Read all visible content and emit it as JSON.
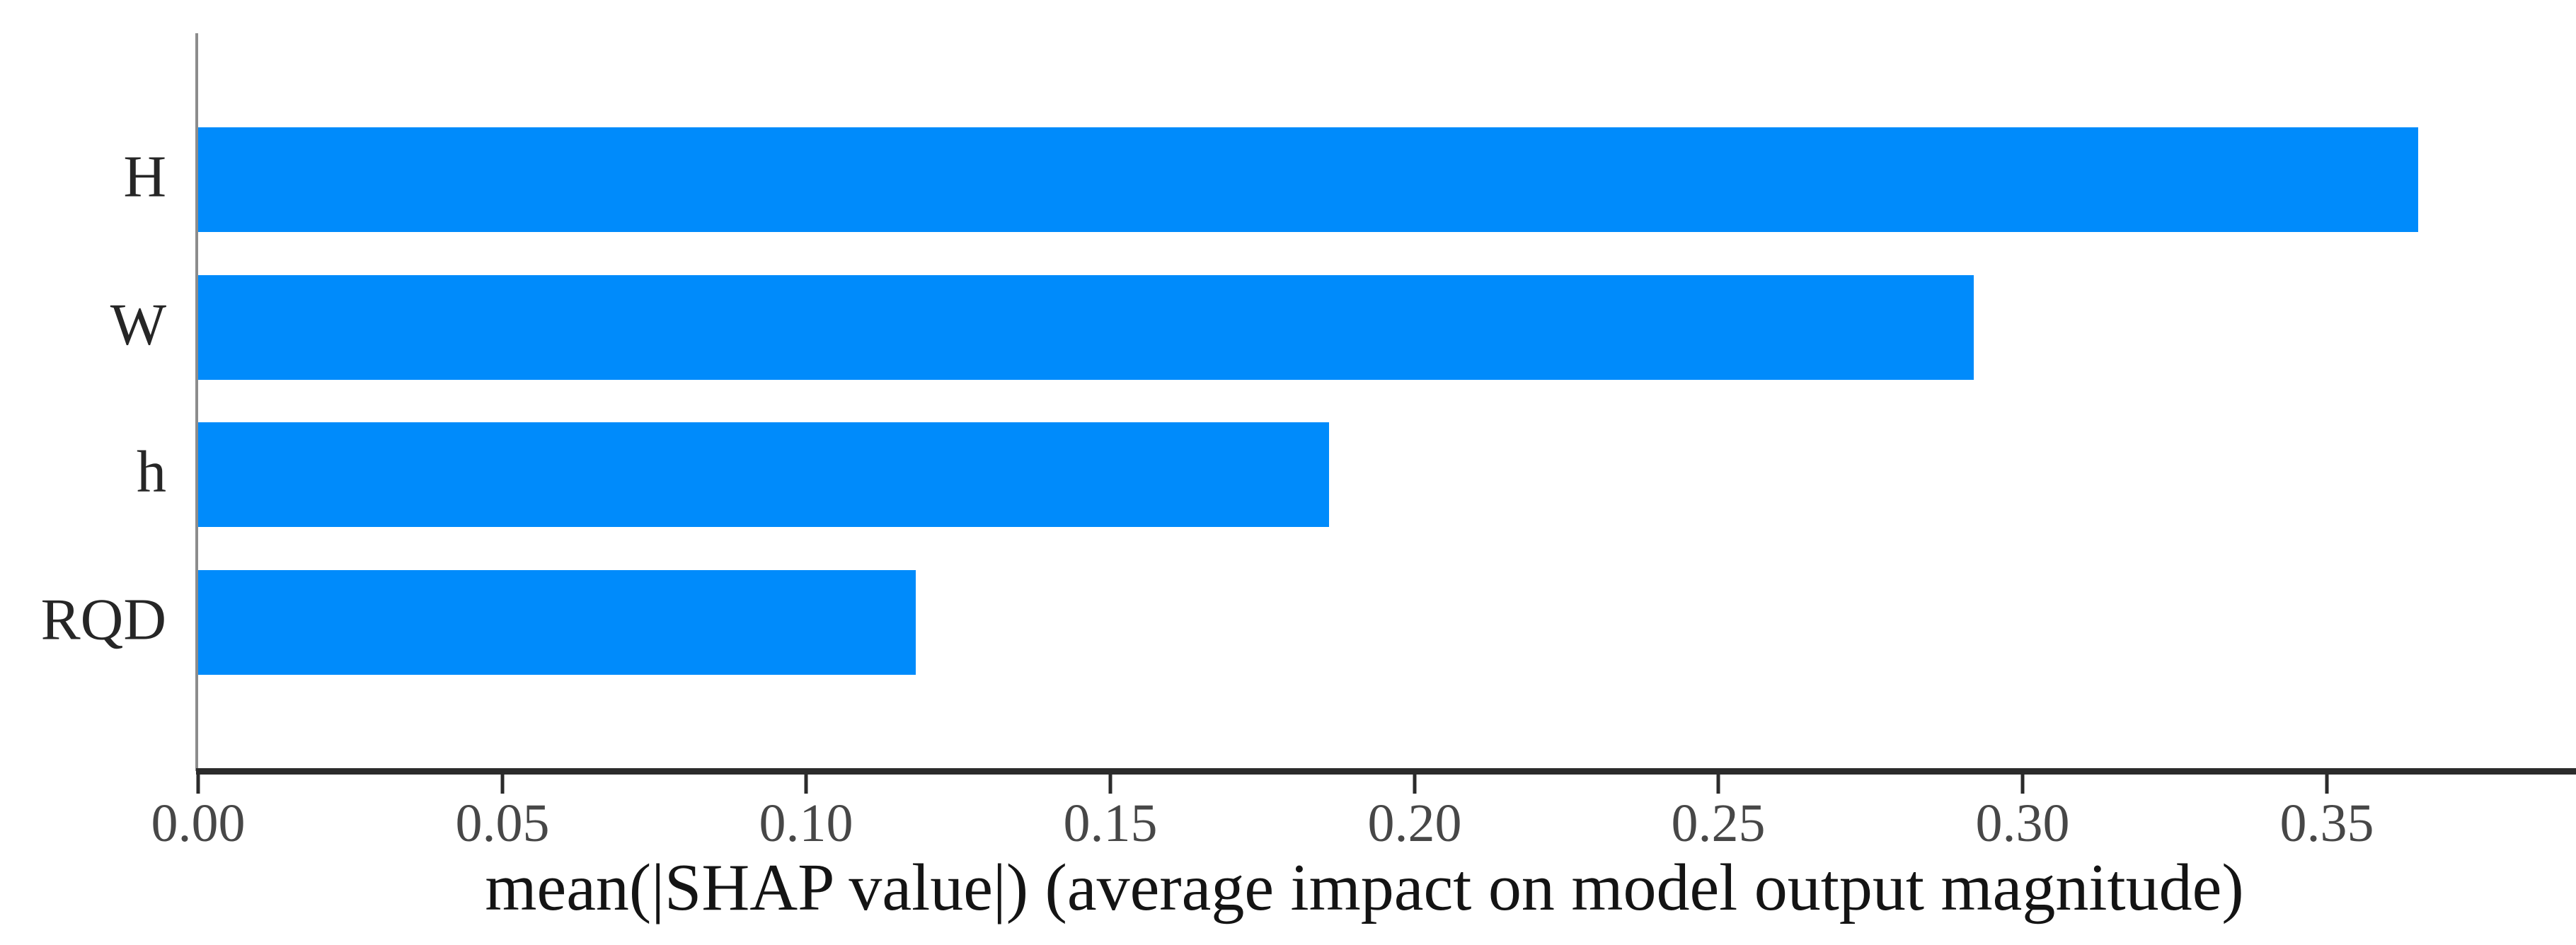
{
  "chart_data": {
    "type": "bar",
    "orientation": "horizontal",
    "title": "",
    "xlabel": "mean(|SHAP value|) (average impact on model output magnitude)",
    "ylabel": "",
    "categories": [
      "H",
      "W",
      "h",
      "RQD"
    ],
    "values": [
      0.365,
      0.292,
      0.186,
      0.118
    ],
    "xlim": [
      0,
      0.391
    ],
    "xticks": [
      0.0,
      0.05,
      0.1,
      0.15,
      0.2,
      0.25,
      0.3,
      0.35
    ],
    "xtick_labels": [
      "0.00",
      "0.05",
      "0.10",
      "0.15",
      "0.20",
      "0.25",
      "0.30",
      "0.35"
    ],
    "grid": false,
    "legend": false,
    "colors": {
      "bar": "#008bfb",
      "background": "#ffffff",
      "y_axis_line": "#8c8c8c",
      "x_axis_line": "#2b2b2b",
      "tick_mark": "#2b2b2b",
      "tick_label": "#474747",
      "category_label": "#262626",
      "xlabel_text": "#141414"
    }
  }
}
